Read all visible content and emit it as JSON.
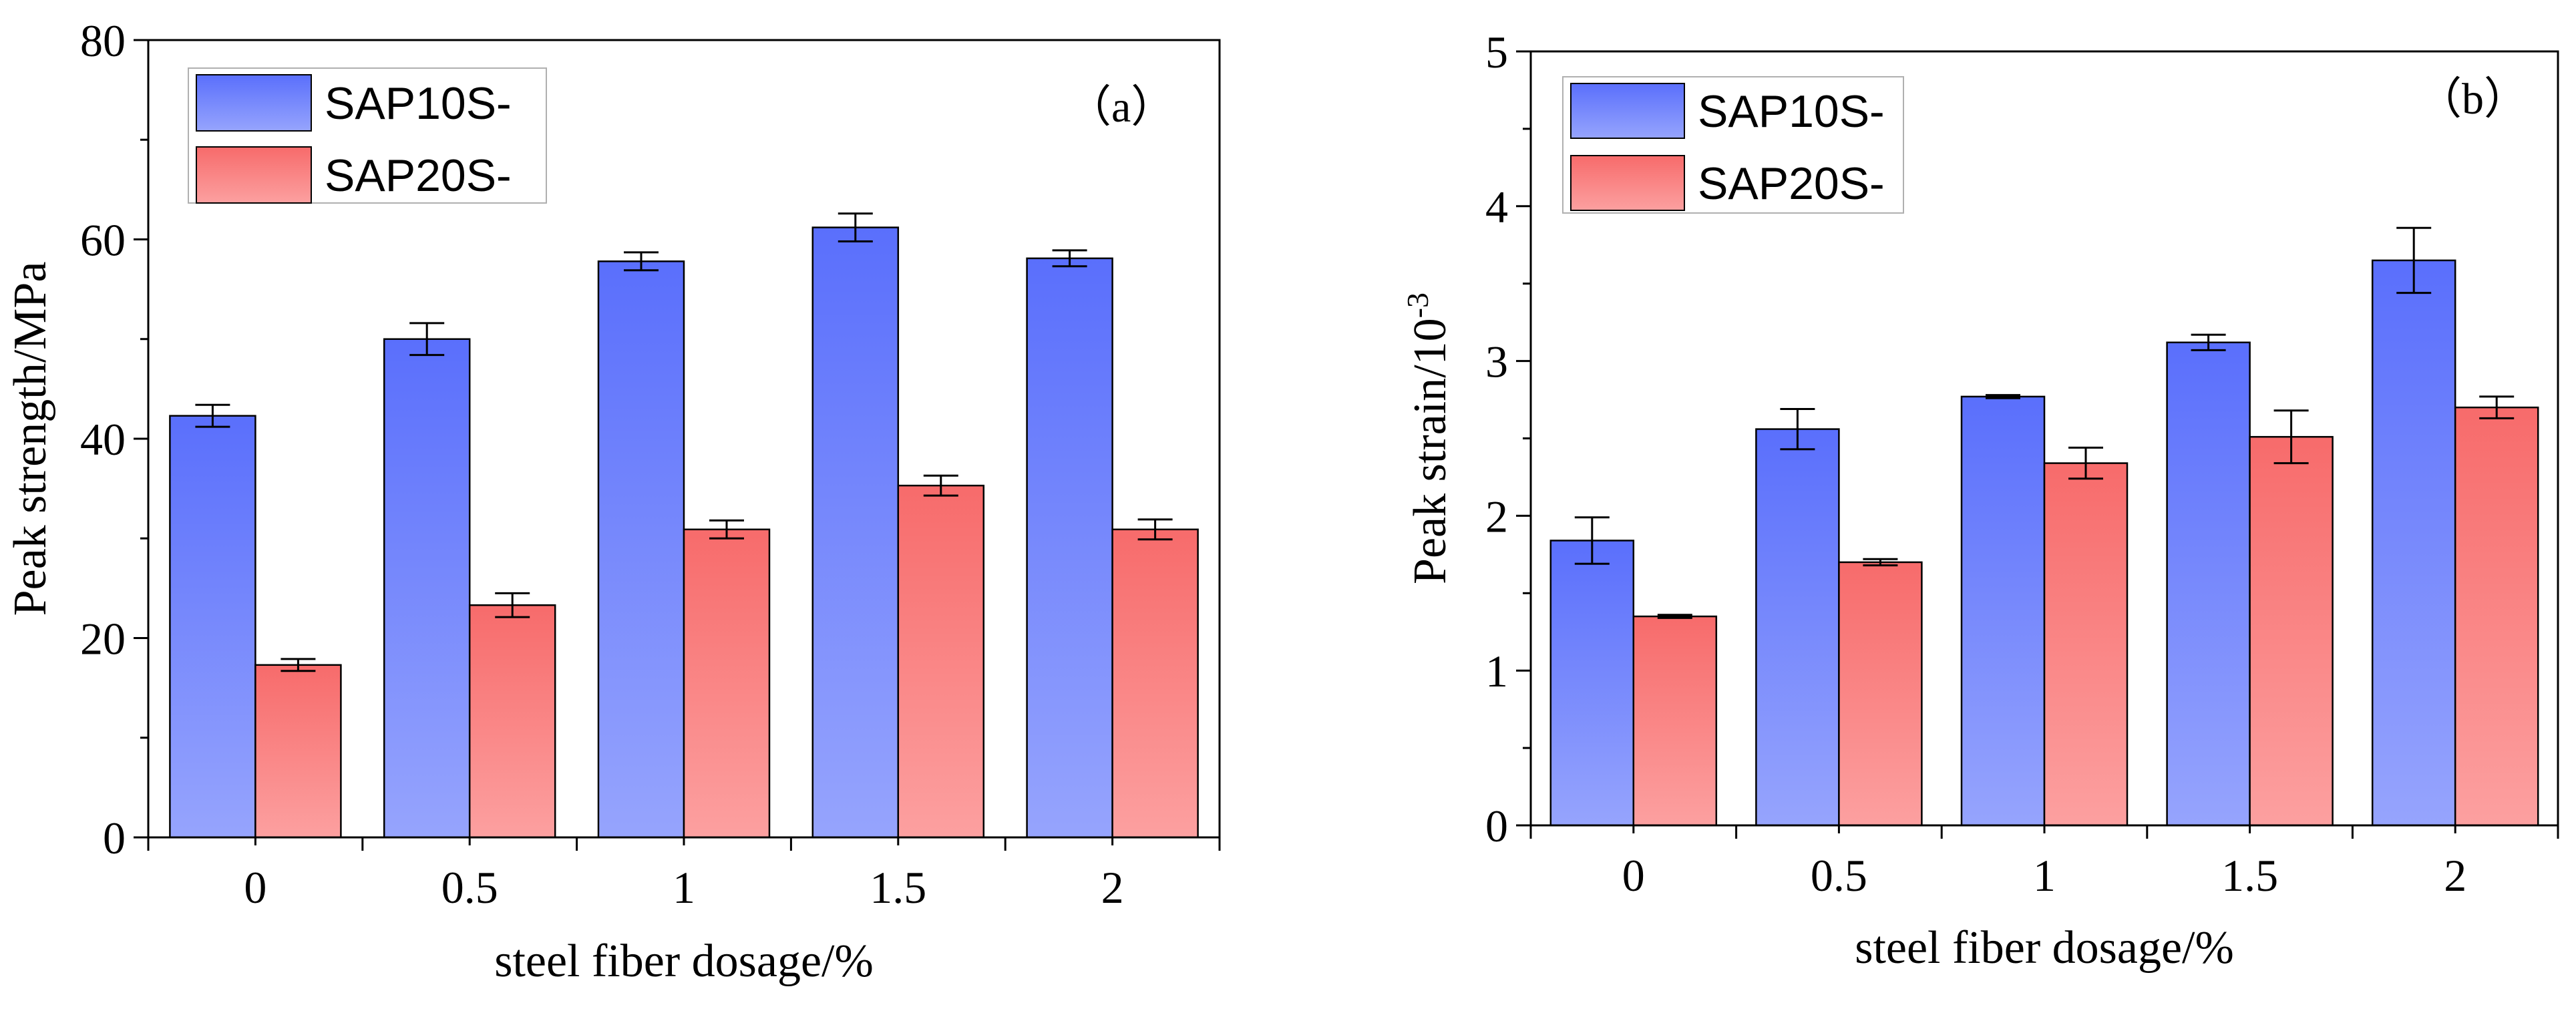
{
  "chart_data": [
    {
      "type": "bar",
      "panel_label": "（a）",
      "categories": [
        "0",
        "0.5",
        "1",
        "1.5",
        "2"
      ],
      "series": [
        {
          "name": "SAP10S-",
          "values": [
            42.3,
            50.0,
            57.8,
            61.2,
            58.1
          ],
          "errors": [
            1.1,
            1.6,
            0.9,
            1.4,
            0.8
          ]
        },
        {
          "name": "SAP20S-",
          "values": [
            17.3,
            23.3,
            30.9,
            35.3,
            30.9
          ],
          "errors": [
            0.6,
            1.2,
            0.9,
            1.0,
            1.0
          ]
        }
      ],
      "xlabel": "steel fiber dosage/%",
      "ylabel": "Peak strength/MPa",
      "ylim": [
        0,
        80
      ],
      "yticks": [
        "0",
        "20",
        "40",
        "60",
        "80"
      ],
      "grid": false,
      "legend_position": "top-left"
    },
    {
      "type": "bar",
      "panel_label": "（b）",
      "categories": [
        "0",
        "0.5",
        "1",
        "1.5",
        "2"
      ],
      "series": [
        {
          "name": "SAP10S-",
          "values": [
            1.84,
            2.56,
            2.77,
            3.12,
            3.65
          ],
          "errors": [
            0.15,
            0.13,
            0.01,
            0.05,
            0.21
          ]
        },
        {
          "name": "SAP20S-",
          "values": [
            1.35,
            1.7,
            2.34,
            2.51,
            2.7
          ],
          "errors": [
            0.01,
            0.02,
            0.1,
            0.17,
            0.07
          ]
        }
      ],
      "xlabel": "steel fiber dosage/%",
      "ylabel": "Peak strain/10",
      "ylabel_superscript": "-3",
      "ylim": [
        0,
        5
      ],
      "yticks": [
        "0",
        "1",
        "2",
        "3",
        "4",
        "5"
      ],
      "grid": false,
      "legend_position": "top-left"
    }
  ],
  "colors": {
    "series_1_top": "#5a6ffc",
    "series_1_bottom": "#96a4fd",
    "series_2_top": "#f76b6b",
    "series_2_bottom": "#fca0a0",
    "axis": "#000000"
  }
}
